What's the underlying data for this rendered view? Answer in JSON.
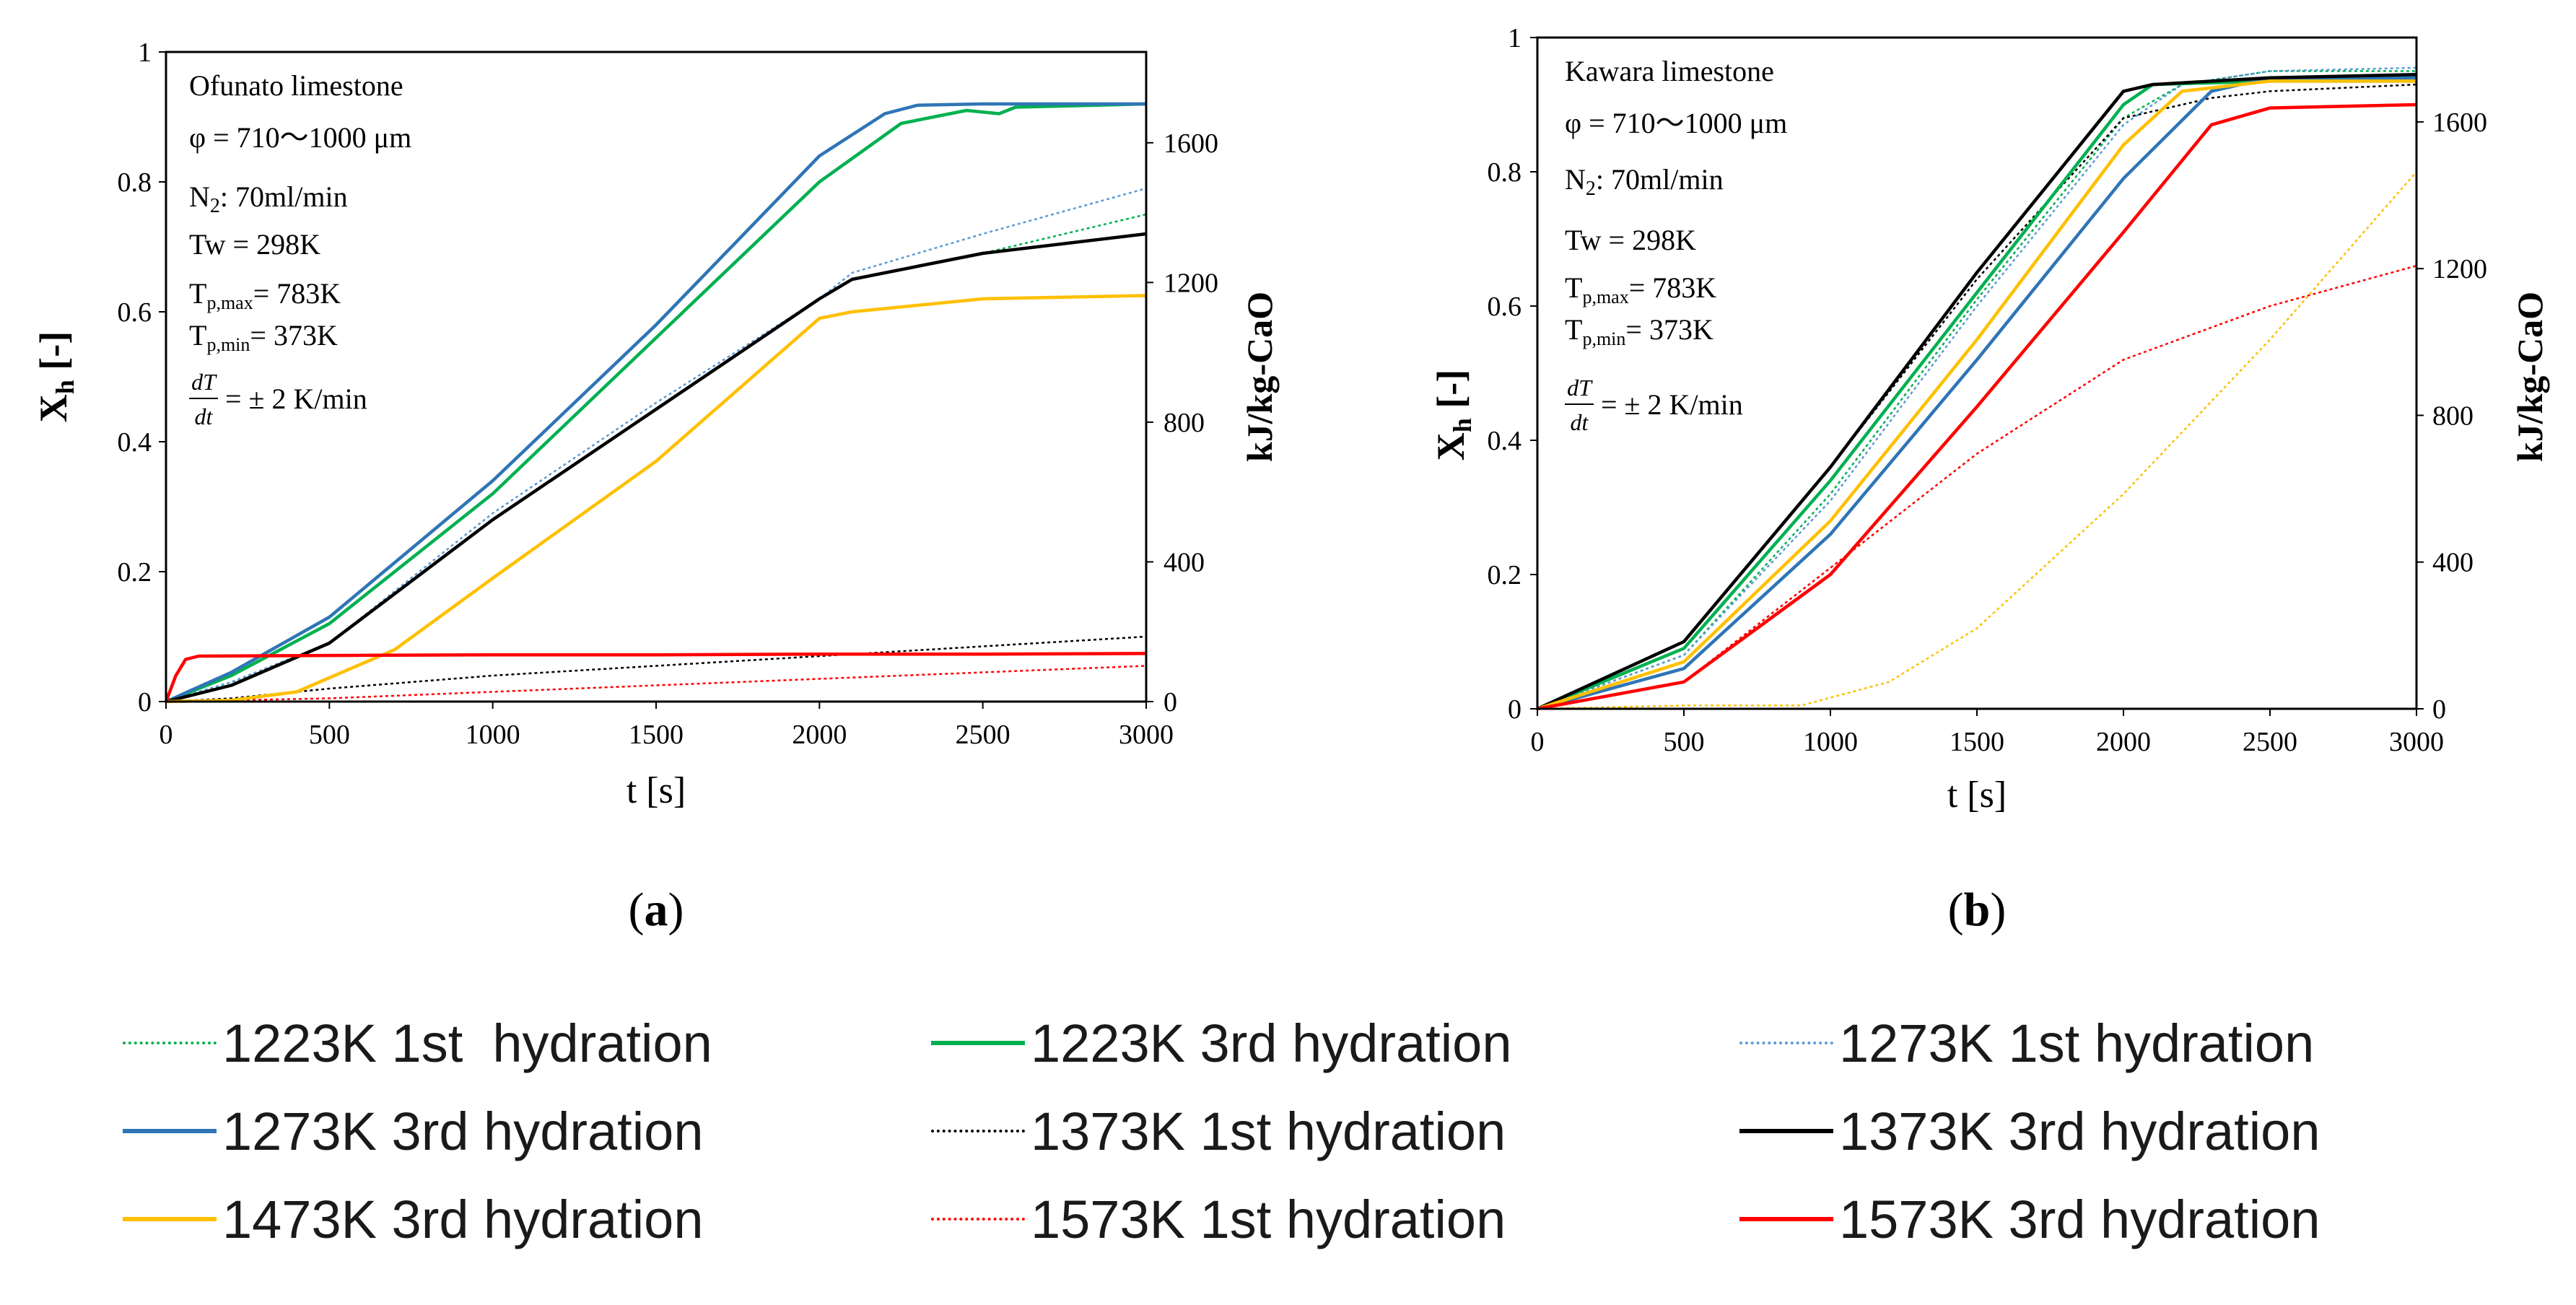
{
  "series_styles": [
    {
      "key": "s1223_1",
      "label": "1223K 1st  hydration",
      "color": "#00b050",
      "dash": true
    },
    {
      "key": "s1223_3",
      "label": "1223K 3rd hydration",
      "color": "#00b050",
      "dash": false
    },
    {
      "key": "s1273_1",
      "label": "1273K 1st hydration",
      "color": "#5b9bd5",
      "dash": true
    },
    {
      "key": "s1273_3",
      "label": "1273K 3rd hydration",
      "color": "#2e75b6",
      "dash": false
    },
    {
      "key": "s1373_1",
      "label": "1373K 1st hydration",
      "color": "#000000",
      "dash": true
    },
    {
      "key": "s1373_3",
      "label": "1373K 3rd hydration",
      "color": "#000000",
      "dash": false
    },
    {
      "key": "s1473_3",
      "label": "1473K 3rd hydration",
      "color": "#ffc000",
      "dash": false
    },
    {
      "key": "s1573_1",
      "label": "1573K 1st hydration",
      "color": "#ff0000",
      "dash": true
    },
    {
      "key": "s1573_3",
      "label": "1573K 3rd hydration",
      "color": "#ff0000",
      "dash": false
    }
  ],
  "chart_data": [
    {
      "id": "a",
      "type": "line",
      "panel_label": "(a)",
      "title": "",
      "xlabel": "t [s]",
      "ylabel": "X",
      "ylabel_sub": "h",
      "ylabel_suffix": " [-]",
      "y2label": "kJ/kg-CaO",
      "xlim": [
        0,
        3000
      ],
      "ylim": [
        0,
        1
      ],
      "y2lim": [
        0,
        1860
      ],
      "xticks": [
        0,
        500,
        1000,
        1500,
        2000,
        2500,
        3000
      ],
      "yticks": [
        0,
        0.2,
        0.4,
        0.6,
        0.8,
        1
      ],
      "y2ticks": [
        0,
        400,
        800,
        1200,
        1600
      ],
      "annotations": {
        "material": "Ofunato limestone",
        "size": "φ = 710〜1000 μm",
        "n2": ": 70ml/min",
        "tw": "Tw = 298K",
        "tpmax": "= 783K",
        "tpmin": "= 373K",
        "rate": "= ± 2 K/min"
      },
      "series": [
        {
          "key": "s1223_1",
          "x": [
            0,
            200,
            500,
            1000,
            1500,
            2000,
            2100,
            2500,
            3000
          ],
          "y": [
            0,
            0.03,
            0.09,
            0.28,
            0.45,
            0.62,
            0.65,
            0.69,
            0.75
          ]
        },
        {
          "key": "s1223_3",
          "x": [
            0,
            200,
            500,
            1000,
            1500,
            2000,
            2250,
            2450,
            2550,
            2600,
            3000
          ],
          "y": [
            0,
            0.04,
            0.12,
            0.32,
            0.56,
            0.8,
            0.89,
            0.91,
            0.905,
            0.915,
            0.92
          ]
        },
        {
          "key": "s1273_1",
          "x": [
            0,
            200,
            500,
            1000,
            1500,
            2000,
            2100,
            2500,
            3000
          ],
          "y": [
            0,
            0.03,
            0.09,
            0.29,
            0.46,
            0.62,
            0.66,
            0.72,
            0.79
          ]
        },
        {
          "key": "s1273_3",
          "x": [
            0,
            200,
            500,
            1000,
            1500,
            2000,
            2200,
            2300,
            2500,
            3000
          ],
          "y": [
            0,
            0.045,
            0.13,
            0.34,
            0.58,
            0.84,
            0.905,
            0.918,
            0.92,
            0.92
          ]
        },
        {
          "key": "s1373_1",
          "x": [
            0,
            200,
            500,
            1000,
            1500,
            2000,
            2500,
            3000
          ],
          "y": [
            0,
            0.005,
            0.02,
            0.04,
            0.055,
            0.07,
            0.085,
            0.1
          ]
        },
        {
          "key": "s1373_3",
          "x": [
            0,
            200,
            500,
            1000,
            1500,
            2000,
            2100,
            2500,
            3000
          ],
          "y": [
            0,
            0.025,
            0.09,
            0.28,
            0.45,
            0.62,
            0.65,
            0.69,
            0.72
          ]
        },
        {
          "key": "s1473_3",
          "x": [
            0,
            200,
            400,
            700,
            1000,
            1500,
            2000,
            2100,
            2500,
            3000
          ],
          "y": [
            0,
            0.002,
            0.015,
            0.08,
            0.19,
            0.37,
            0.59,
            0.6,
            0.62,
            0.625
          ]
        },
        {
          "key": "s1573_1",
          "x": [
            0,
            500,
            1000,
            1500,
            2000,
            2500,
            3000
          ],
          "y": [
            0,
            0.005,
            0.015,
            0.025,
            0.035,
            0.045,
            0.055
          ]
        },
        {
          "key": "s1573_3",
          "x": [
            0,
            30,
            60,
            100,
            500,
            1000,
            1500,
            2000,
            2500,
            3000
          ],
          "y": [
            0,
            0.04,
            0.065,
            0.07,
            0.071,
            0.072,
            0.072,
            0.073,
            0.073,
            0.074
          ]
        }
      ]
    },
    {
      "id": "b",
      "type": "line",
      "panel_label": "(b)",
      "title": "",
      "xlabel": "t [s]",
      "ylabel": "X",
      "ylabel_sub": "h",
      "ylabel_suffix": " [-]",
      "y2label": "kJ/kg-CaO",
      "xlim": [
        0,
        3000
      ],
      "ylim": [
        0,
        1
      ],
      "y2lim": [
        0,
        1830
      ],
      "xticks": [
        0,
        500,
        1000,
        1500,
        2000,
        2500,
        3000
      ],
      "yticks": [
        0,
        0.2,
        0.4,
        0.6,
        0.8,
        1
      ],
      "y2ticks": [
        0,
        400,
        800,
        1200,
        1600
      ],
      "annotations": {
        "material": "Kawara limestone",
        "size": "φ = 710〜1000 μm",
        "n2": ": 70ml/min",
        "tw": "Tw = 298K",
        "tpmax": "= 783K",
        "tpmin": "= 373K",
        "rate": "= ± 2 K/min"
      },
      "series": [
        {
          "key": "s1223_1",
          "x": [
            0,
            500,
            1000,
            1500,
            2000,
            2200,
            2500,
            3000
          ],
          "y": [
            0,
            0.08,
            0.32,
            0.61,
            0.88,
            0.93,
            0.95,
            0.95
          ]
        },
        {
          "key": "s1223_3",
          "x": [
            0,
            500,
            1000,
            1500,
            2000,
            2100,
            2500,
            3000
          ],
          "y": [
            0,
            0.09,
            0.34,
            0.62,
            0.9,
            0.93,
            0.935,
            0.935
          ]
        },
        {
          "key": "s1273_1",
          "x": [
            0,
            500,
            1000,
            1500,
            2000,
            2200,
            2500,
            3000
          ],
          "y": [
            0,
            0.08,
            0.31,
            0.6,
            0.87,
            0.93,
            0.95,
            0.955
          ]
        },
        {
          "key": "s1273_3",
          "x": [
            0,
            500,
            1000,
            1500,
            2000,
            2300,
            2500,
            3000
          ],
          "y": [
            0,
            0.06,
            0.26,
            0.52,
            0.79,
            0.92,
            0.94,
            0.94
          ]
        },
        {
          "key": "s1373_1",
          "x": [
            0,
            500,
            1000,
            1500,
            2000,
            2300,
            2500,
            3000
          ],
          "y": [
            0,
            0.1,
            0.36,
            0.64,
            0.88,
            0.91,
            0.92,
            0.93
          ]
        },
        {
          "key": "s1373_3",
          "x": [
            0,
            500,
            1000,
            1500,
            2000,
            2100,
            2500,
            3000
          ],
          "y": [
            0,
            0.1,
            0.36,
            0.65,
            0.92,
            0.93,
            0.94,
            0.945
          ]
        },
        {
          "key": "s1473_3",
          "x": [
            0,
            500,
            1000,
            1500,
            2000,
            2200,
            2500,
            3000
          ],
          "y": [
            0,
            0.07,
            0.28,
            0.55,
            0.84,
            0.92,
            0.935,
            0.935
          ]
        },
        {
          "key": "s1573_1",
          "x": [
            0,
            500,
            1000,
            1500,
            2000,
            2500,
            3000
          ],
          "y": [
            0,
            0.04,
            0.21,
            0.38,
            0.52,
            0.6,
            0.66
          ]
        },
        {
          "key": "s1573_3",
          "x": [
            0,
            500,
            1000,
            1500,
            2000,
            2300,
            2500,
            3000
          ],
          "y": [
            0,
            0.04,
            0.2,
            0.45,
            0.71,
            0.87,
            0.895,
            0.9
          ]
        },
        {
          "key": "s1473_1",
          "x": [
            0,
            500,
            900,
            1200,
            1500,
            2000,
            2500,
            3000
          ],
          "y": [
            0,
            0.005,
            0.005,
            0.04,
            0.12,
            0.32,
            0.55,
            0.8
          ]
        }
      ]
    }
  ]
}
